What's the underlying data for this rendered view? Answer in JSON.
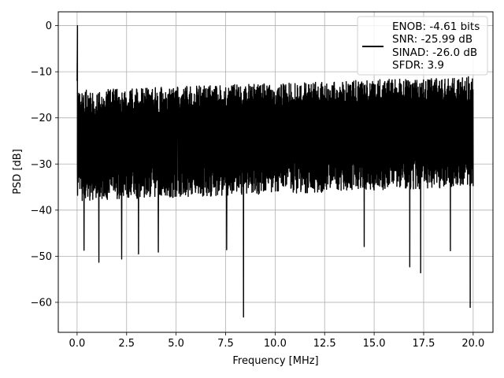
{
  "chart_data": {
    "type": "line",
    "xlabel": "Frequency [MHz]",
    "ylabel": "PSD [dB]",
    "xlim": [
      -0.95,
      21.0
    ],
    "ylim": [
      -66.5,
      3.0
    ],
    "xticks": [
      0.0,
      2.5,
      5.0,
      7.5,
      10.0,
      12.5,
      15.0,
      17.5,
      20.0
    ],
    "xtick_labels": [
      "0.0",
      "2.5",
      "5.0",
      "7.5",
      "10.0",
      "12.5",
      "15.0",
      "17.5",
      "20.0"
    ],
    "yticks": [
      0,
      -10,
      -20,
      -30,
      -40,
      -50,
      -60
    ],
    "ytick_labels": [
      "0",
      "−10",
      "−20",
      "−30",
      "−40",
      "−50",
      "−60"
    ],
    "grid": true,
    "series_color": "#000000",
    "legend": {
      "placement": "top-right",
      "entries": [
        "ENOB: -4.61 bits",
        "SNR: -25.99 dB",
        "SINAD: -26.0 dB",
        "SFDR: 3.9"
      ]
    },
    "series": [
      {
        "x_range": [
          0.0,
          20.0
        ],
        "peak": {
          "x": 0.02,
          "y": 0.0
        },
        "noise_band": {
          "start": {
            "top": -14,
            "bottom": -38
          },
          "end": {
            "top": -11,
            "bottom": -35
          }
        },
        "notable_dips": [
          {
            "x": 0.35,
            "y": -48.7
          },
          {
            "x": 1.1,
            "y": -51.3
          },
          {
            "x": 2.25,
            "y": -50.6
          },
          {
            "x": 3.1,
            "y": -49.5
          },
          {
            "x": 4.1,
            "y": -49.1
          },
          {
            "x": 7.55,
            "y": -48.6
          },
          {
            "x": 8.4,
            "y": -63.2
          },
          {
            "x": 14.5,
            "y": -47.9
          },
          {
            "x": 16.8,
            "y": -52.3
          },
          {
            "x": 17.35,
            "y": -53.6
          },
          {
            "x": 18.85,
            "y": -48.8
          },
          {
            "x": 19.85,
            "y": -61.1
          }
        ]
      }
    ]
  }
}
